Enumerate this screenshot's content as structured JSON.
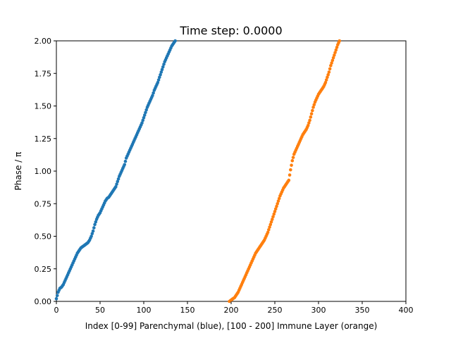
{
  "chart_data": {
    "type": "scatter",
    "title": "Time step: 0.0000",
    "xlabel": "Index [0-99] Parenchymal (blue), [100 - 200] Immune Layer (orange)",
    "ylabel": "Phase / π",
    "xlim": [
      0,
      400
    ],
    "ylim": [
      0,
      2
    ],
    "grid": false,
    "legend": "none",
    "x_ticks": [
      "0",
      "50",
      "100",
      "150",
      "200",
      "250",
      "300",
      "350",
      "400"
    ],
    "y_ticks": [
      "0.00",
      "0.25",
      "0.50",
      "0.75",
      "1.00",
      "1.25",
      "1.50",
      "1.75",
      "2.00"
    ],
    "series": [
      {
        "color": "#1f77b4",
        "x_start": 0,
        "x_step": 2,
        "values": [
          0.02,
          0.07,
          0.1,
          0.11,
          0.13,
          0.16,
          0.19,
          0.22,
          0.25,
          0.28,
          0.31,
          0.34,
          0.37,
          0.39,
          0.41,
          0.42,
          0.43,
          0.44,
          0.45,
          0.47,
          0.5,
          0.54,
          0.59,
          0.63,
          0.66,
          0.68,
          0.71,
          0.74,
          0.77,
          0.79,
          0.8,
          0.82,
          0.84,
          0.86,
          0.88,
          0.92,
          0.96,
          0.99,
          1.02,
          1.05,
          1.1,
          1.13,
          1.16,
          1.19,
          1.22,
          1.25,
          1.28,
          1.31,
          1.34,
          1.37,
          1.41,
          1.45,
          1.49,
          1.52,
          1.55,
          1.58,
          1.62,
          1.65,
          1.68,
          1.72,
          1.76,
          1.8,
          1.84,
          1.87,
          1.9,
          1.93,
          1.96,
          1.98,
          2.0
        ]
      },
      {
        "color": "#ff7f0e",
        "x_start": 198,
        "x_step": 2,
        "values": [
          0.0,
          0.01,
          0.02,
          0.03,
          0.05,
          0.07,
          0.1,
          0.13,
          0.16,
          0.19,
          0.22,
          0.25,
          0.28,
          0.31,
          0.34,
          0.37,
          0.39,
          0.41,
          0.43,
          0.45,
          0.47,
          0.5,
          0.53,
          0.57,
          0.61,
          0.65,
          0.69,
          0.73,
          0.77,
          0.81,
          0.84,
          0.87,
          0.89,
          0.91,
          0.93,
          1.01,
          1.08,
          1.13,
          1.16,
          1.19,
          1.22,
          1.25,
          1.28,
          1.3,
          1.32,
          1.35,
          1.39,
          1.44,
          1.49,
          1.53,
          1.56,
          1.59,
          1.61,
          1.63,
          1.65,
          1.68,
          1.72,
          1.76,
          1.81,
          1.85,
          1.89,
          1.93,
          1.97,
          2.0
        ]
      }
    ]
  }
}
